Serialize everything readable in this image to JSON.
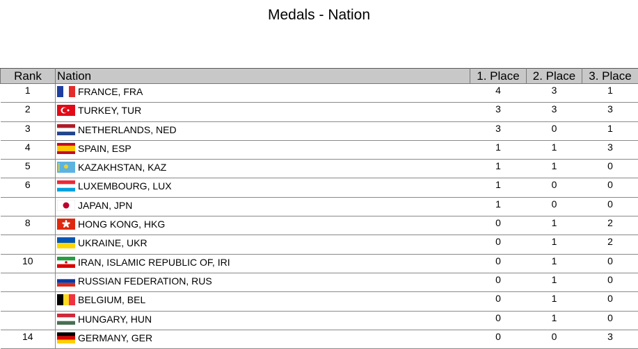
{
  "title": "Medals - Nation",
  "table": {
    "header": [
      "Rank",
      "Nation",
      "1. Place",
      "2. Place",
      "3. Place"
    ],
    "rows": [
      [
        1,
        "FRANCE, FRA",
        4,
        3,
        1
      ],
      [
        2,
        "TURKEY, TUR",
        3,
        3,
        3
      ],
      [
        3,
        "NETHERLANDS, NED",
        3,
        0,
        1
      ],
      [
        4,
        "SPAIN, ESP",
        1,
        1,
        3
      ],
      [
        5,
        "KAZAKHSTAN, KAZ",
        1,
        1,
        0
      ],
      [
        6,
        "LUXEMBOURG, LUX",
        1,
        0,
        0
      ],
      [
        null,
        "JAPAN, JPN",
        1,
        0,
        0
      ],
      [
        8,
        "HONG KONG, HKG",
        0,
        1,
        2
      ],
      [
        null,
        "UKRAINE, UKR",
        0,
        1,
        2
      ],
      [
        10,
        "IRAN, ISLAMIC REPUBLIC OF, IRI",
        0,
        1,
        0
      ],
      [
        null,
        "RUSSIAN FEDERATION, RUS",
        0,
        1,
        0
      ],
      [
        null,
        "BELGIUM, BEL",
        0,
        1,
        0
      ],
      [
        null,
        "HUNGARY, HUN",
        0,
        1,
        0
      ],
      [
        14,
        "GERMANY, GER",
        0,
        0,
        3
      ]
    ]
  }
}
